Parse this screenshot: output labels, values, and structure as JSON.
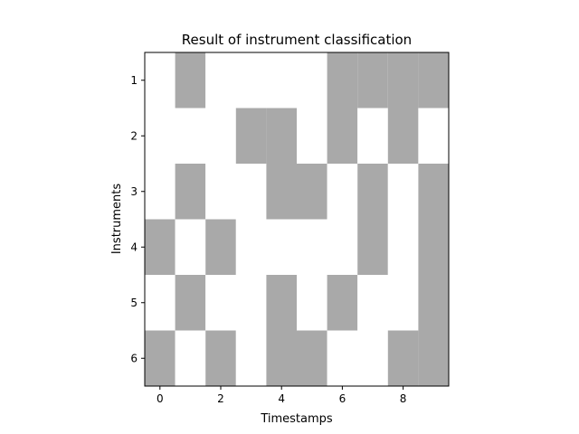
{
  "chart_data": {
    "type": "heatmap",
    "title": "Result of instrument classification",
    "xlabel": "Timestamps",
    "ylabel": "Instruments",
    "x_ticks": [
      0,
      2,
      4,
      6,
      8
    ],
    "y_ticks": [
      1,
      2,
      3,
      4,
      5,
      6
    ],
    "xlim": [
      -0.5,
      9.5
    ],
    "ylim": [
      6.5,
      0.5
    ],
    "timestamps": [
      0,
      1,
      2,
      3,
      4,
      5,
      6,
      7,
      8,
      9
    ],
    "instruments": [
      1,
      2,
      3,
      4,
      5,
      6
    ],
    "active_color": "#a9a9a9",
    "inactive_color": "#ffffff",
    "matrix": [
      [
        0,
        1,
        0,
        0,
        0,
        0,
        1,
        1,
        1,
        1
      ],
      [
        0,
        0,
        0,
        1,
        1,
        0,
        1,
        0,
        1,
        0
      ],
      [
        0,
        1,
        0,
        0,
        1,
        1,
        0,
        1,
        0,
        1
      ],
      [
        1,
        0,
        1,
        0,
        0,
        0,
        0,
        1,
        0,
        1
      ],
      [
        0,
        1,
        0,
        0,
        1,
        0,
        1,
        0,
        0,
        1
      ],
      [
        1,
        0,
        1,
        0,
        1,
        1,
        0,
        0,
        1,
        1
      ]
    ]
  }
}
